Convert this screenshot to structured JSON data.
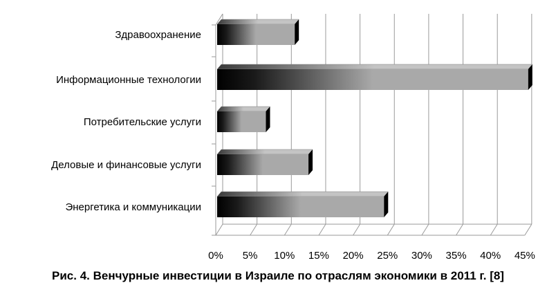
{
  "chart_data": {
    "type": "bar",
    "orientation": "horizontal",
    "style": "3d",
    "categories": [
      "Здравоохранение",
      "Информационные технологии",
      "Потребительские услуги",
      "Деловые и финансовые услуги",
      "Энергетика и коммуникации"
    ],
    "values": [
      11.5,
      45.5,
      7.3,
      13.5,
      24.5
    ],
    "x_ticks": [
      "0%",
      "5%",
      "10%",
      "15%",
      "20%",
      "25%",
      "30%",
      "35%",
      "40%",
      "45%"
    ],
    "xlim": [
      0,
      45
    ],
    "grid": true,
    "legend": "none",
    "bar_colors": {
      "dark": "#000000",
      "light": "#a9a9a9",
      "edge": "#7f7f7f"
    }
  },
  "caption": "Рис. 4. Венчурные инвестиции в Израиле по отраслям экономики в 2011 г. [8]"
}
